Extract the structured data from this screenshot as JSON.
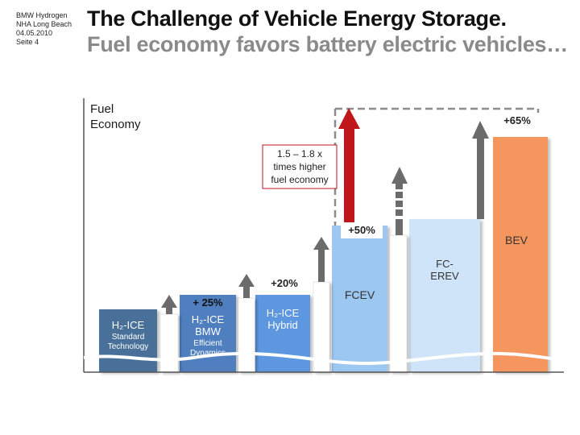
{
  "header": {
    "meta_lines": [
      "BMW Hydrogen",
      "NHA Long Beach",
      "04.05.2010",
      "Seite 4"
    ],
    "title": "The Challenge of Vehicle Energy Storage.",
    "subtitle": "Fuel economy favors battery electric vehicles…"
  },
  "diagram": {
    "y_axis_label": [
      "Fuel",
      "Economy"
    ],
    "callout": [
      "1.5 – 1.8 x",
      "times higher",
      "fuel economy"
    ],
    "pct_65": "+65%",
    "pct_50": "+50%",
    "pct_20": "+20%",
    "pct_25": "+ 25%",
    "vehicles": [
      {
        "name": "H₂-ICE",
        "sub": [
          "Standard",
          "Technology"
        ],
        "color": "#4a6f98"
      },
      {
        "name": "H₂-ICE",
        "name2": "BMW",
        "sub": [
          "Efficient",
          "Dynamics"
        ],
        "color": "#4f7fbf"
      },
      {
        "name": "H₂-ICE",
        "name2": "Hybrid",
        "color": "#5c97df"
      },
      {
        "name": "FCEV",
        "color": "#9cc7f0"
      },
      {
        "name": "FC-",
        "name2": "EREV",
        "color": "#cfe4f8"
      },
      {
        "name": "BEV",
        "color": "#f5965f"
      }
    ],
    "colors": {
      "arrow_red": "#c0151b",
      "arrow_gray": "#6b6b6b",
      "dashed": "#8c8c8c",
      "axis": "#555555"
    }
  }
}
